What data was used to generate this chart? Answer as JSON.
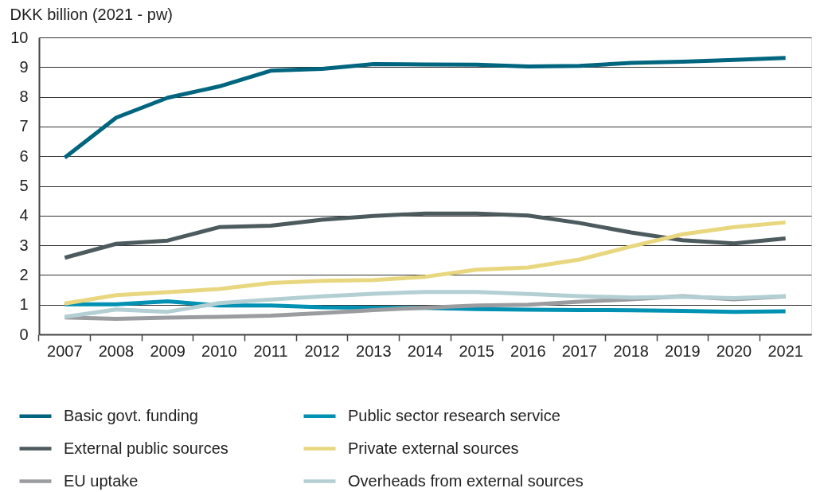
{
  "chart_data": {
    "type": "line",
    "ylabel": "DKK billion (2021 - pw)",
    "categories": [
      "2007",
      "2008",
      "2009",
      "2010",
      "2011",
      "2012",
      "2013",
      "2014",
      "2015",
      "2016",
      "2017",
      "2018",
      "2019",
      "2020",
      "2021"
    ],
    "series": [
      {
        "name": "Basic govt. funding",
        "color": "#00657e",
        "values": [
          5.95,
          7.3,
          7.97,
          8.35,
          8.88,
          8.94,
          9.1,
          9.09,
          9.08,
          9.02,
          9.04,
          9.14,
          9.18,
          9.24,
          9.31
        ]
      },
      {
        "name": "Public sector research service",
        "color": "#0091b3",
        "values": [
          1.01,
          1.01,
          1.11,
          0.97,
          0.97,
          0.91,
          0.9,
          0.89,
          0.85,
          0.83,
          0.82,
          0.81,
          0.79,
          0.76,
          0.78
        ]
      },
      {
        "name": "External public sources",
        "color": "#4d5a5e",
        "values": [
          2.58,
          3.05,
          3.16,
          3.61,
          3.66,
          3.86,
          3.99,
          4.07,
          4.07,
          4.0,
          3.75,
          3.43,
          3.17,
          3.06,
          3.23
        ]
      },
      {
        "name": "Private external sources",
        "color": "#e8d77f",
        "values": [
          1.04,
          1.32,
          1.42,
          1.53,
          1.73,
          1.8,
          1.83,
          1.94,
          2.18,
          2.25,
          2.52,
          2.96,
          3.37,
          3.61,
          3.77
        ]
      },
      {
        "name": "EU uptake",
        "color": "#9a9c9f",
        "values": [
          0.57,
          0.52,
          0.56,
          0.59,
          0.63,
          0.72,
          0.82,
          0.9,
          0.97,
          1.0,
          1.1,
          1.18,
          1.29,
          1.18,
          1.28
        ]
      },
      {
        "name": "Overheads from external sources",
        "color": "#b3cfd3",
        "values": [
          0.59,
          0.84,
          0.76,
          1.05,
          1.17,
          1.28,
          1.37,
          1.43,
          1.43,
          1.36,
          1.29,
          1.24,
          1.27,
          1.22,
          1.29
        ]
      }
    ],
    "ylim": [
      0,
      10
    ],
    "yticks": [
      0,
      1,
      2,
      3,
      4,
      5,
      6,
      7,
      8,
      9,
      10
    ],
    "grid": "y",
    "legend": "bottom"
  }
}
